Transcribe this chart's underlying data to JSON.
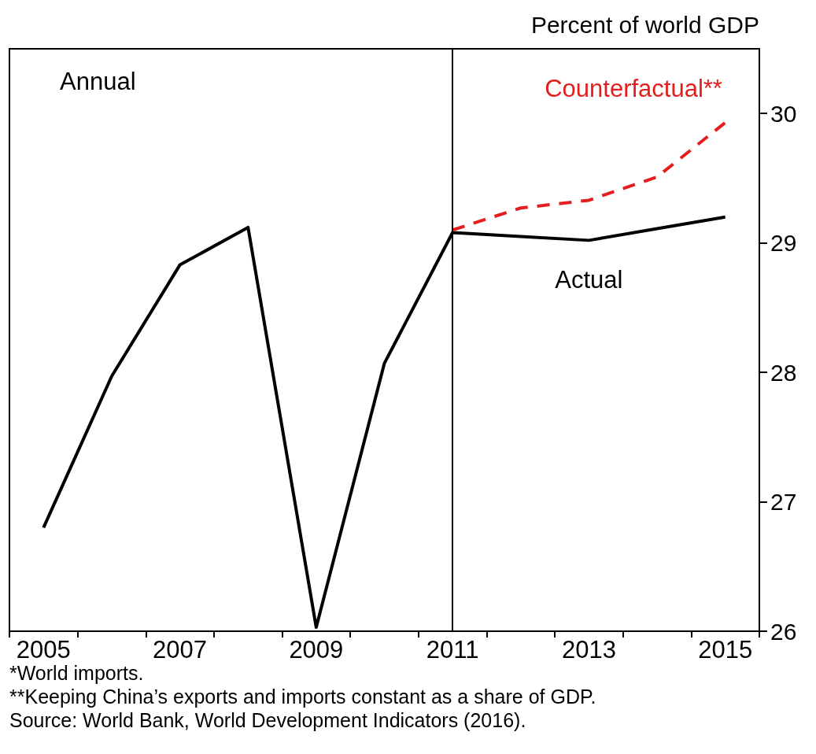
{
  "chart_data": {
    "type": "line",
    "ylabel": "Percent of world GDP",
    "categories": [
      "2005",
      null,
      "2007",
      null,
      "2009",
      null,
      "2011",
      null,
      "2013",
      null,
      "2015"
    ],
    "series": [
      {
        "name": "Actual",
        "color": "#000000",
        "line_style": "solid",
        "values": [
          26.8,
          27.97,
          28.83,
          29.12,
          26.03,
          28.07,
          29.08,
          29.05,
          29.02,
          29.11,
          29.2
        ]
      },
      {
        "name": "Counterfactual**",
        "color": "#e41e1e",
        "line_style": "dashed",
        "values": [
          null,
          null,
          null,
          null,
          null,
          null,
          29.1,
          29.27,
          29.33,
          29.51,
          29.93
        ]
      }
    ],
    "ylim": [
      26,
      30.5
    ],
    "yticks": [
      26,
      27,
      28,
      29,
      30
    ],
    "grid": false,
    "legend": false,
    "marker": "none",
    "ref_lines": [
      {
        "axis": "x",
        "value": "2011",
        "color": "#000000"
      }
    ],
    "annotations": [
      "Annual",
      "*World imports.",
      "**Keeping China’s exports and imports constant as a share of GDP.",
      "Source: World Bank, World Development Indicators (2016)."
    ]
  }
}
